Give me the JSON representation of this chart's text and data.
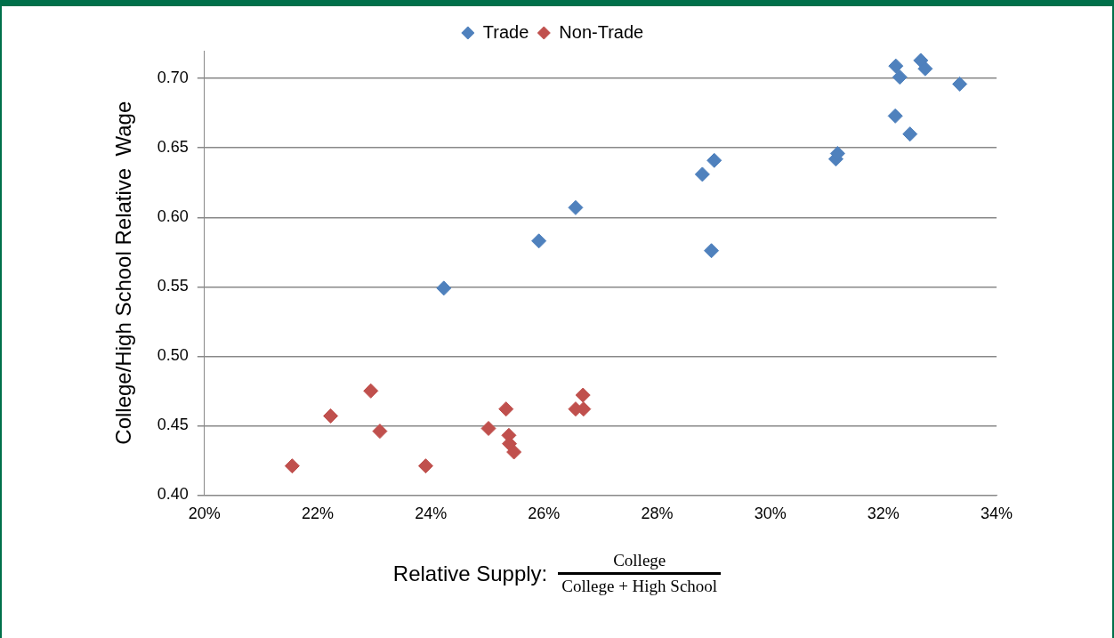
{
  "chart_data": {
    "type": "scatter",
    "xlabel": "Relative Supply:",
    "ylabel": "College/High School Relative  Wage",
    "annotations": [
      "College",
      "College  + High  School"
    ],
    "series": [
      {
        "name": "Trade",
        "color": "#4f81bd",
        "x": [
          24.23,
          25.91,
          26.56,
          28.8,
          29.01,
          28.96,
          31.16,
          31.19,
          32.22,
          32.29,
          32.66,
          32.74,
          33.35,
          32.21,
          32.47
        ],
        "values": [
          0.549,
          0.583,
          0.607,
          0.631,
          0.641,
          0.576,
          0.642,
          0.646,
          0.709,
          0.701,
          0.713,
          0.707,
          0.696,
          0.673,
          0.66
        ]
      },
      {
        "name": "Non-Trade",
        "color": "#c0504d",
        "x": [
          21.55,
          22.23,
          22.94,
          23.1,
          23.91,
          25.02,
          25.33,
          25.38,
          25.39,
          25.47,
          26.56,
          26.69,
          26.7
        ],
        "values": [
          0.421,
          0.457,
          0.475,
          0.446,
          0.421,
          0.448,
          0.462,
          0.443,
          0.437,
          0.431,
          0.462,
          0.472,
          0.462
        ]
      }
    ],
    "xlim": [
      20,
      34
    ],
    "xticks": [
      {
        "value": 20,
        "label": "20%"
      },
      {
        "value": 22,
        "label": "22%"
      },
      {
        "value": 24,
        "label": "24%"
      },
      {
        "value": 26,
        "label": "26%"
      },
      {
        "value": 28,
        "label": "28%"
      },
      {
        "value": 30,
        "label": "30%"
      },
      {
        "value": 32,
        "label": "32%"
      },
      {
        "value": 34,
        "label": "34%"
      }
    ],
    "ylim": [
      0.4,
      0.72
    ],
    "yticks": [
      {
        "value": 0.4,
        "label": "0.40"
      },
      {
        "value": 0.45,
        "label": "0.45"
      },
      {
        "value": 0.5,
        "label": "0.50"
      },
      {
        "value": 0.55,
        "label": "0.55"
      },
      {
        "value": 0.6,
        "label": "0.60"
      },
      {
        "value": 0.65,
        "label": "0.65"
      },
      {
        "value": 0.7,
        "label": "0.70"
      }
    ],
    "grid": "y",
    "legend": "top",
    "marker": "diamond"
  }
}
